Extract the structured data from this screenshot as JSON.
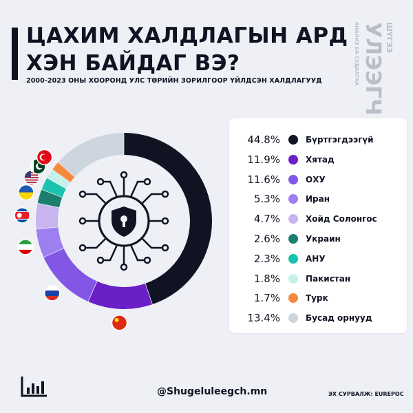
{
  "header": {
    "title_line1": "ЦАХИМ ХАЛДЛАГЫН АРД",
    "title_line2": "ХЭН БАЙДАГ ВЭ?",
    "subtitle": "2000-2023 ОНЫ ХООРОНД УЛС ТӨРИЙН ЗОРИЛГООР ҮЙЛДСЭН ХАЛДЛАГУУД"
  },
  "brand": {
    "logo_text": "УЛЭЭГЧ",
    "logo_small": "ШҮГЭЭ",
    "logo_tagline": "АНАЛИЗ БА СУДАЛГАА"
  },
  "chart_data": {
    "type": "pie",
    "variant": "donut",
    "categories": [
      "Бүртгэгдээгүй",
      "Хятад",
      "ОХУ",
      "Иран",
      "Хойд Солонгос",
      "Украин",
      "АНУ",
      "Пакистан",
      "Турк",
      "Бусад орнууд"
    ],
    "values": [
      44.8,
      11.9,
      11.6,
      5.3,
      4.7,
      2.6,
      2.3,
      1.8,
      1.7,
      13.4
    ],
    "value_labels": [
      "44.8%",
      "11.9%",
      "11.6%",
      "5.3%",
      "4.7%",
      "2.6%",
      "2.3%",
      "1.8%",
      "1.7%",
      "13.4%"
    ],
    "colors": [
      "#0f1322",
      "#6a1fc7",
      "#8257e6",
      "#9e7ff0",
      "#c8b4ee",
      "#1b7f70",
      "#19c3b0",
      "#c6f0ec",
      "#f58a3c",
      "#cdd6df"
    ],
    "flags": [
      "",
      "china-flag",
      "russia-flag",
      "iran-flag",
      "north-korea-flag",
      "ukraine-flag",
      "usa-flag",
      "pakistan-flag",
      "turkey-flag",
      ""
    ],
    "legend_position": "right"
  },
  "center_icon": "shield-lock-icon",
  "footer": {
    "handle": "@Shugeluleegch.mn",
    "source": "ЭХ СУРВАЛЖ: EUREPOC",
    "icon": "bar-chart-icon"
  }
}
